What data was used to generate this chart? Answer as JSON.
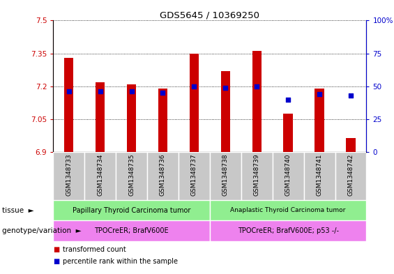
{
  "title": "GDS5645 / 10369250",
  "samples": [
    "GSM1348733",
    "GSM1348734",
    "GSM1348735",
    "GSM1348736",
    "GSM1348737",
    "GSM1348738",
    "GSM1348739",
    "GSM1348740",
    "GSM1348741",
    "GSM1348742"
  ],
  "red_values": [
    7.33,
    7.22,
    7.21,
    7.19,
    7.35,
    7.27,
    7.36,
    7.075,
    7.19,
    6.965
  ],
  "blue_values": [
    46,
    46,
    46,
    45,
    50,
    49,
    50,
    40,
    44,
    43
  ],
  "ylim_left": [
    6.9,
    7.5
  ],
  "ylim_right": [
    0,
    100
  ],
  "yticks_left": [
    6.9,
    7.05,
    7.2,
    7.35,
    7.5
  ],
  "yticks_right": [
    0,
    25,
    50,
    75,
    100
  ],
  "ytick_labels_left": [
    "6.9",
    "7.05",
    "7.2",
    "7.35",
    "7.5"
  ],
  "ytick_labels_right": [
    "0",
    "25",
    "50",
    "75",
    "100%"
  ],
  "bar_bottom": 6.9,
  "bar_color": "#cc0000",
  "dot_color": "#0000cc",
  "tissue_labels": [
    "Papillary Thyroid Carcinoma tumor",
    "Anaplastic Thyroid Carcinoma tumor"
  ],
  "tissue_split": 5,
  "tissue_color": "#90ee90",
  "genotype_labels": [
    "TPOCreER; BrafV600E",
    "TPOCreER; BrafV600E; p53 -/-"
  ],
  "genotype_color": "#ee82ee",
  "legend_red": "transformed count",
  "legend_blue": "percentile rank within the sample",
  "bg_color": "#ffffff",
  "xlabel_bg": "#c8c8c8"
}
